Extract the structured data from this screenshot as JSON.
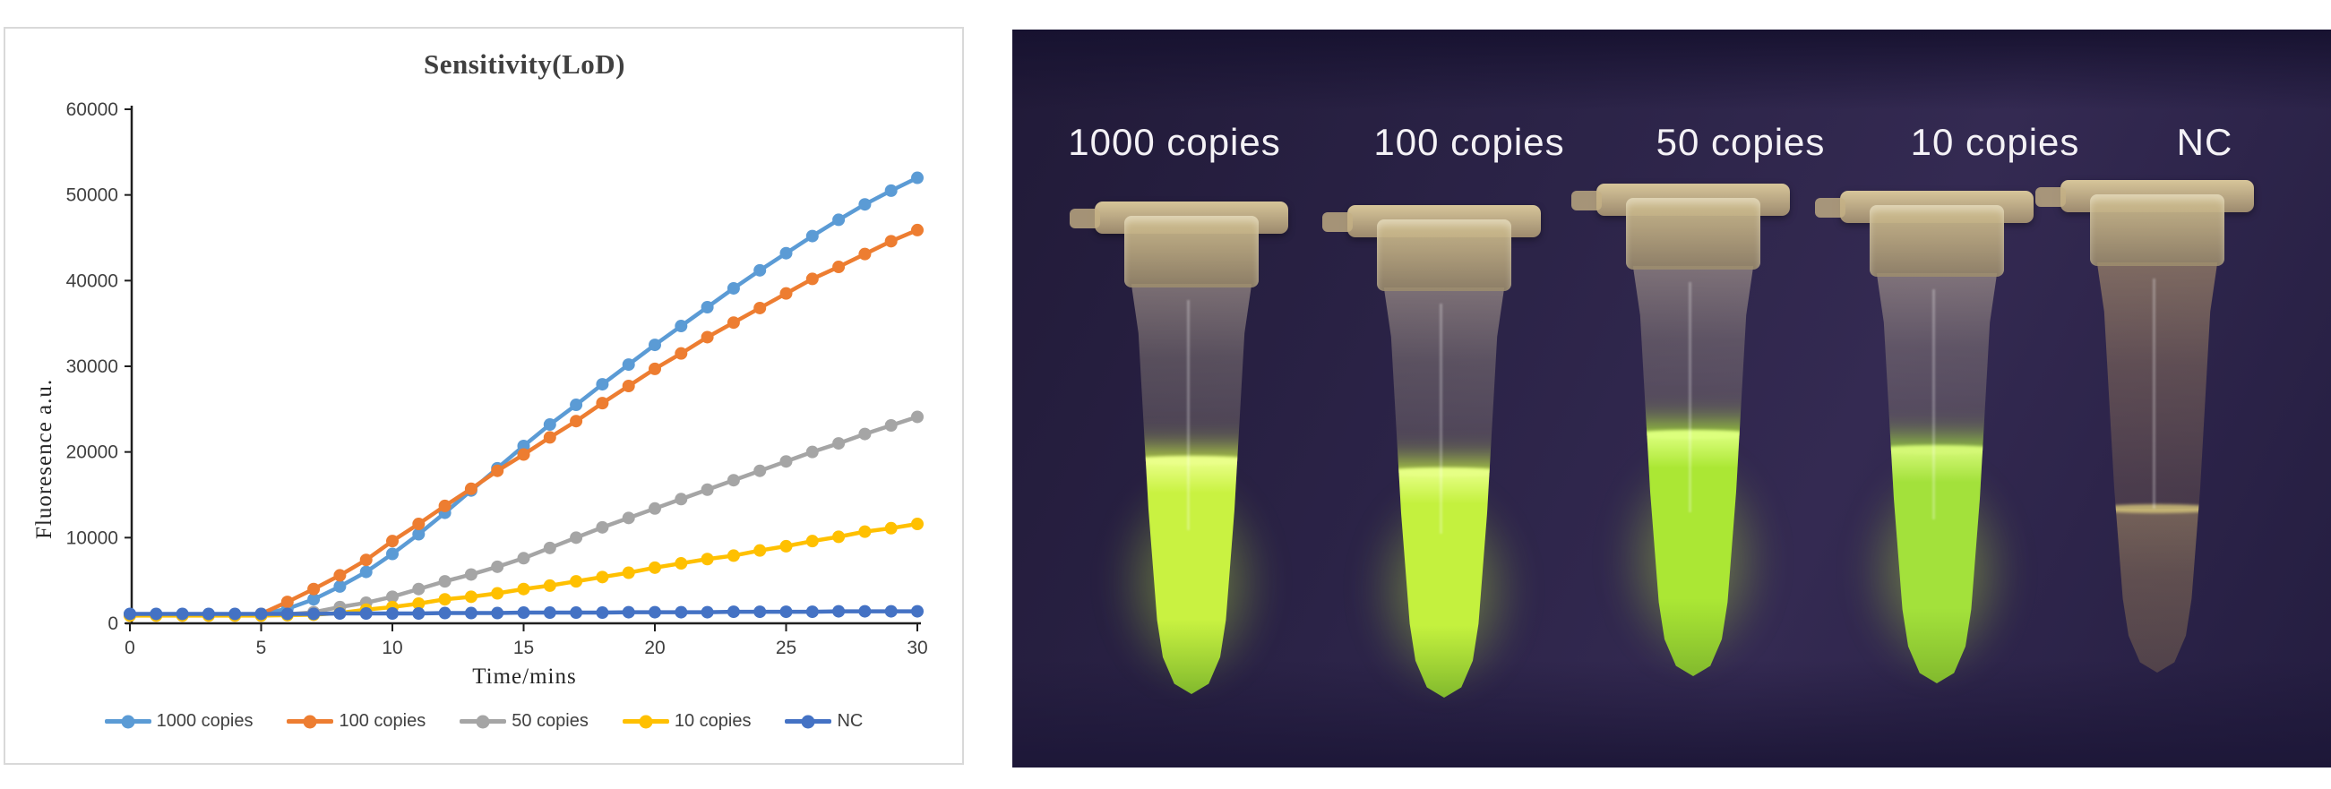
{
  "figure": {
    "left_panel": "sensitivity-line-chart",
    "right_panel": "uv-tube-photo"
  },
  "chart": {
    "title": "Sensitivity(LoD)",
    "ylabel": "Fluoresence a.u.",
    "xlabel": "Time/mins"
  },
  "chart_data": {
    "type": "line",
    "title": "Sensitivity(LoD)",
    "xlabel": "Time/mins",
    "ylabel": "Fluoresence a.u.",
    "xlim": [
      0,
      30
    ],
    "ylim": [
      0,
      60000
    ],
    "x_ticks": [
      0,
      5,
      10,
      15,
      20,
      25,
      30
    ],
    "y_ticks": [
      0,
      10000,
      20000,
      30000,
      40000,
      50000,
      60000
    ],
    "grid": false,
    "legend_position": "bottom",
    "marker": "circle",
    "x": [
      0,
      1,
      2,
      3,
      4,
      5,
      6,
      7,
      8,
      9,
      10,
      11,
      12,
      13,
      14,
      15,
      16,
      17,
      18,
      19,
      20,
      21,
      22,
      23,
      24,
      25,
      26,
      27,
      28,
      29,
      30
    ],
    "series": [
      {
        "name": "1000 copies",
        "color": "#5B9BD5",
        "values": [
          1050,
          1050,
          1000,
          1000,
          1000,
          1050,
          1700,
          2800,
          4300,
          6000,
          8100,
          10400,
          12900,
          15500,
          18100,
          20700,
          23200,
          25500,
          27900,
          30200,
          32500,
          34700,
          36900,
          39100,
          41200,
          43200,
          45200,
          47100,
          48900,
          50500,
          52000
        ]
      },
      {
        "name": "100 copies",
        "color": "#ED7D31",
        "values": [
          950,
          950,
          950,
          950,
          950,
          1100,
          2500,
          4000,
          5600,
          7400,
          9600,
          11600,
          13700,
          15700,
          17800,
          19700,
          21700,
          23600,
          25700,
          27700,
          29700,
          31500,
          33400,
          35100,
          36800,
          38500,
          40200,
          41600,
          43100,
          44600,
          45900
        ]
      },
      {
        "name": "50 copies",
        "color": "#A5A5A5",
        "values": [
          1000,
          1000,
          1000,
          1000,
          1000,
          1000,
          1050,
          1300,
          1900,
          2400,
          3100,
          4000,
          4900,
          5700,
          6600,
          7600,
          8800,
          10000,
          11200,
          12300,
          13400,
          14500,
          15600,
          16700,
          17800,
          18900,
          20000,
          21000,
          22100,
          23100,
          24100
        ]
      },
      {
        "name": "10 copies",
        "color": "#FFC000",
        "values": [
          900,
          900,
          900,
          900,
          900,
          900,
          950,
          1000,
          1200,
          1600,
          1900,
          2300,
          2800,
          3100,
          3500,
          4000,
          4400,
          4900,
          5400,
          5900,
          6500,
          7000,
          7500,
          7900,
          8500,
          9000,
          9600,
          10100,
          10700,
          11100,
          11600
        ]
      },
      {
        "name": "NC",
        "color": "#4472C4",
        "values": [
          1100,
          1100,
          1100,
          1100,
          1100,
          1100,
          1100,
          1100,
          1150,
          1150,
          1150,
          1150,
          1200,
          1200,
          1200,
          1250,
          1250,
          1250,
          1250,
          1300,
          1300,
          1300,
          1300,
          1350,
          1350,
          1350,
          1350,
          1400,
          1400,
          1400,
          1400
        ]
      }
    ]
  },
  "photo": {
    "background_color": "#2b2347",
    "label_color": "#f4f2f6",
    "tubes": [
      {
        "label": "1000 copies",
        "glowing": true,
        "liquid_level_pct": 43,
        "liquid_main": "#c9f241",
        "liquid_bright": "#eaff8a"
      },
      {
        "label": "100 copies",
        "glowing": true,
        "liquid_level_pct": 45,
        "liquid_main": "#c4f13e",
        "liquid_bright": "#e6ff85"
      },
      {
        "label": "50 copies",
        "glowing": true,
        "liquid_level_pct": 41,
        "liquid_main": "#abe734",
        "liquid_bright": "#dcff7d"
      },
      {
        "label": "10 copies",
        "glowing": true,
        "liquid_level_pct": 43,
        "liquid_main": "#a3e13b",
        "liquid_bright": "#d4f876"
      },
      {
        "label": "NC",
        "glowing": false,
        "liquid_level_pct": 60,
        "liquid_main": "#8f7a55",
        "liquid_bright": "#d8c87c"
      }
    ]
  }
}
